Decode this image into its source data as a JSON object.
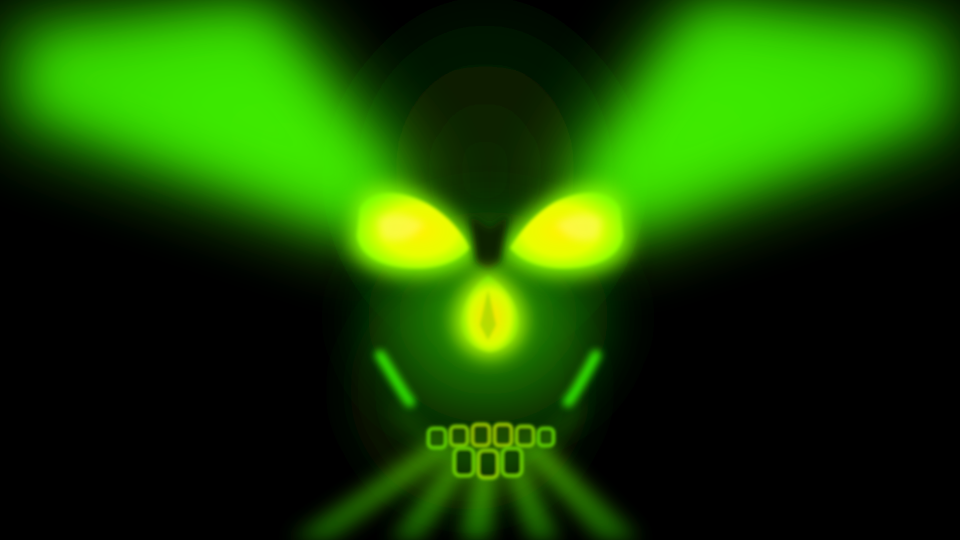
{
  "scene": {
    "subject": "glowing-skull",
    "colors": {
      "background": "#000000",
      "beam": "#3cff00",
      "glow_hot": "#ffe600",
      "glow_mid": "#a8ff00",
      "skull_shadow": "#051a00"
    }
  }
}
